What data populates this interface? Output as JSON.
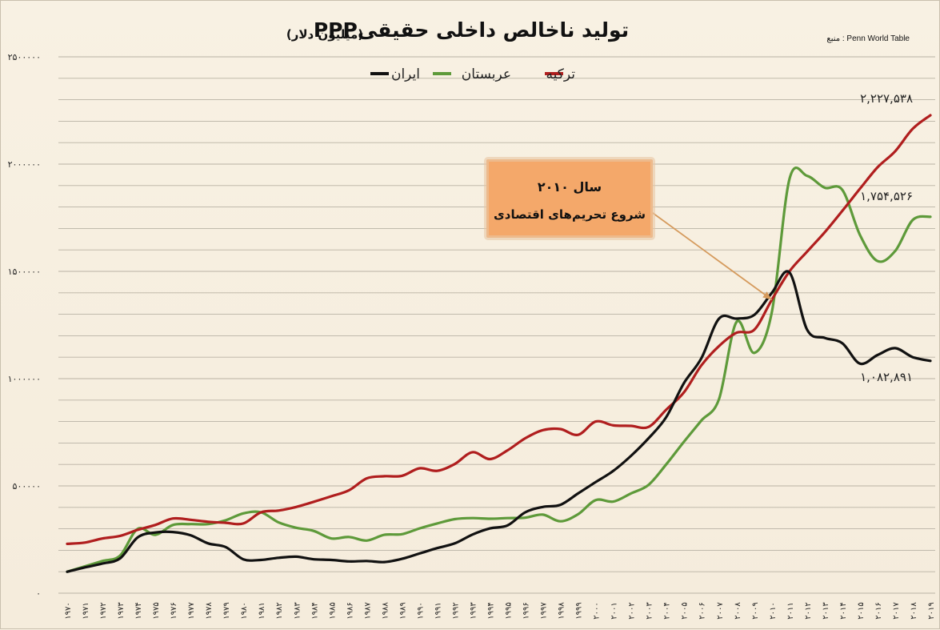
{
  "chart_data": {
    "type": "line",
    "title": "تولید ناخالص داخلی حقیقیPPP",
    "subtitle": "(میلیون دلار)",
    "source": "منبع : Penn World Table",
    "ylim": [
      0,
      2500000
    ],
    "y_ticks": [
      "۰",
      "۵۰۰۰۰۰",
      "۱۰۰۰۰۰۰",
      "۱۵۰۰۰۰۰",
      "۲۰۰۰۰۰۰",
      "۲۵۰۰۰۰۰"
    ],
    "y_tick_values": [
      0,
      500000,
      1000000,
      1500000,
      2000000,
      2500000
    ],
    "grid": true,
    "legend_position": "top",
    "x": [
      1970,
      1971,
      1972,
      1973,
      1974,
      1975,
      1976,
      1977,
      1978,
      1979,
      1980,
      1981,
      1982,
      1983,
      1984,
      1985,
      1986,
      1987,
      1988,
      1989,
      1990,
      1991,
      1992,
      1993,
      1994,
      1995,
      1996,
      1997,
      1998,
      1999,
      2000,
      2001,
      2002,
      2003,
      2004,
      2005,
      2006,
      2007,
      2008,
      2009,
      2010,
      2011,
      2012,
      2013,
      2014,
      2015,
      2016,
      2017,
      2018,
      2019
    ],
    "x_tick_labels": [
      "۱۹۷۰",
      "۱۹۷۱",
      "۱۹۷۲",
      "۱۹۷۳",
      "۱۹۷۴",
      "۱۹۷۵",
      "۱۹۷۶",
      "۱۹۷۷",
      "۱۹۷۸",
      "۱۹۷۹",
      "۱۹۸۰",
      "۱۹۸۱",
      "۱۹۸۲",
      "۱۹۸۳",
      "۱۹۸۴",
      "۱۹۸۵",
      "۱۹۸۶",
      "۱۹۸۷",
      "۱۹۸۸",
      "۱۹۸۹",
      "۱۹۹۰",
      "۱۹۹۱",
      "۱۹۹۲",
      "۱۹۹۳",
      "۱۹۹۴",
      "۱۹۹۵",
      "۱۹۹۶",
      "۱۹۹۷",
      "۱۹۹۸",
      "۱۹۹۹",
      "۲۰۰۰",
      "۲۰۰۱",
      "۲۰۰۲",
      "۲۰۰۳",
      "۲۰۰۴",
      "۲۰۰۵",
      "۲۰۰۶",
      "۲۰۰۷",
      "۲۰۰۸",
      "۲۰۰۹",
      "۲۰۱۰",
      "۲۰۱۱",
      "۲۰۱۲",
      "۲۰۱۳",
      "۲۰۱۴",
      "۲۰۱۵",
      "۲۰۱۶",
      "۲۰۱۷",
      "۲۰۱۸",
      "۲۰۱۹"
    ],
    "series": [
      {
        "name": "ترکیه",
        "color": "#b01e1e",
        "values": [
          230000,
          236000,
          255000,
          267000,
          295000,
          318000,
          348000,
          342000,
          333000,
          328000,
          325000,
          377000,
          385000,
          402000,
          426000,
          452000,
          480000,
          535000,
          545000,
          547000,
          582000,
          570000,
          602000,
          657000,
          625000,
          666000,
          722000,
          760000,
          765000,
          738000,
          800000,
          782000,
          780000,
          775000,
          855000,
          935000,
          1062000,
          1152000,
          1214000,
          1228000,
          1368000,
          1500000,
          1592000,
          1682000,
          1782000,
          1885000,
          1985000,
          2060000,
          2165000,
          2227538
        ]
      },
      {
        "name": "عربستان",
        "color": "#5e9a3a",
        "values": [
          100000,
          125000,
          150000,
          175000,
          300000,
          272000,
          318000,
          322000,
          322000,
          340000,
          372000,
          377000,
          330000,
          305000,
          290000,
          255000,
          262000,
          245000,
          272000,
          275000,
          302000,
          325000,
          345000,
          350000,
          347000,
          350000,
          352000,
          366000,
          335000,
          368000,
          434000,
          427000,
          465000,
          505000,
          600000,
          705000,
          805000,
          905000,
          1265000,
          1120000,
          1310000,
          1930000,
          1945000,
          1890000,
          1880000,
          1670000,
          1548000,
          1595000,
          1740000,
          1754526
        ]
      },
      {
        "name": "ایران",
        "color": "#111111",
        "values": [
          100000,
          120000,
          138000,
          162000,
          260000,
          283000,
          285000,
          270000,
          232000,
          215000,
          158000,
          155000,
          165000,
          170000,
          158000,
          155000,
          148000,
          150000,
          145000,
          160000,
          185000,
          210000,
          232000,
          273000,
          302000,
          316000,
          377000,
          402000,
          412000,
          465000,
          518000,
          570000,
          640000,
          722000,
          820000,
          978000,
          1095000,
          1280000,
          1280000,
          1297000,
          1400000,
          1495000,
          1228000,
          1190000,
          1165000,
          1070000,
          1110000,
          1142000,
          1100000,
          1082891
        ]
      }
    ],
    "end_labels": [
      "۲,۲۲۷,۵۳۸",
      "۱,۷۵۴,۵۲۶",
      "۱,۰۸۲,۸۹۱"
    ],
    "annotation": {
      "line1": "سال ۲۰۱۰",
      "line2": "شروع تحریم‌های اقتصادی",
      "box_color": "#f4a86a",
      "target_year": 2010
    }
  }
}
